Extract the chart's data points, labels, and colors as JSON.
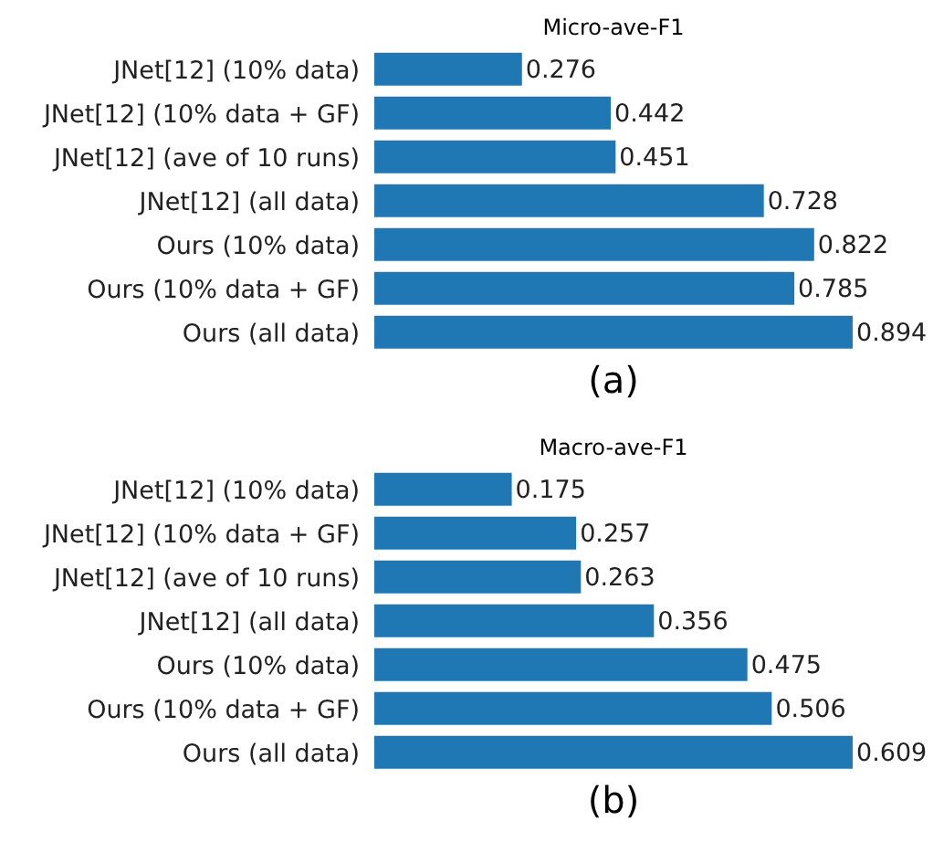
{
  "chart_data": [
    {
      "type": "bar",
      "orientation": "horizontal",
      "title": "Micro-ave-F1",
      "categories": [
        "JNet[12] (10% data)",
        "JNet[12] (10% data + GF)",
        "JNet[12] (ave of 10 runs)",
        "JNet[12] (all data)",
        "Ours (10% data)",
        "Ours (10% data + GF)",
        "Ours (all data)"
      ],
      "values": [
        0.276,
        0.442,
        0.451,
        0.728,
        0.822,
        0.785,
        0.894
      ],
      "color": "#1f77b4",
      "data_labels": true,
      "annotations": [
        "(a)"
      ]
    },
    {
      "type": "bar",
      "orientation": "horizontal",
      "title": "Macro-ave-F1",
      "categories": [
        "JNet[12] (10% data)",
        "JNet[12] (10% data + GF)",
        "JNet[12] (ave of 10 runs)",
        "JNet[12] (all data)",
        "Ours (10% data)",
        "Ours (10% data + GF)",
        "Ours (all data)"
      ],
      "values": [
        0.175,
        0.257,
        0.263,
        0.356,
        0.475,
        0.506,
        0.609
      ],
      "color": "#1f77b4",
      "data_labels": true,
      "annotations": [
        "(b)"
      ]
    }
  ]
}
